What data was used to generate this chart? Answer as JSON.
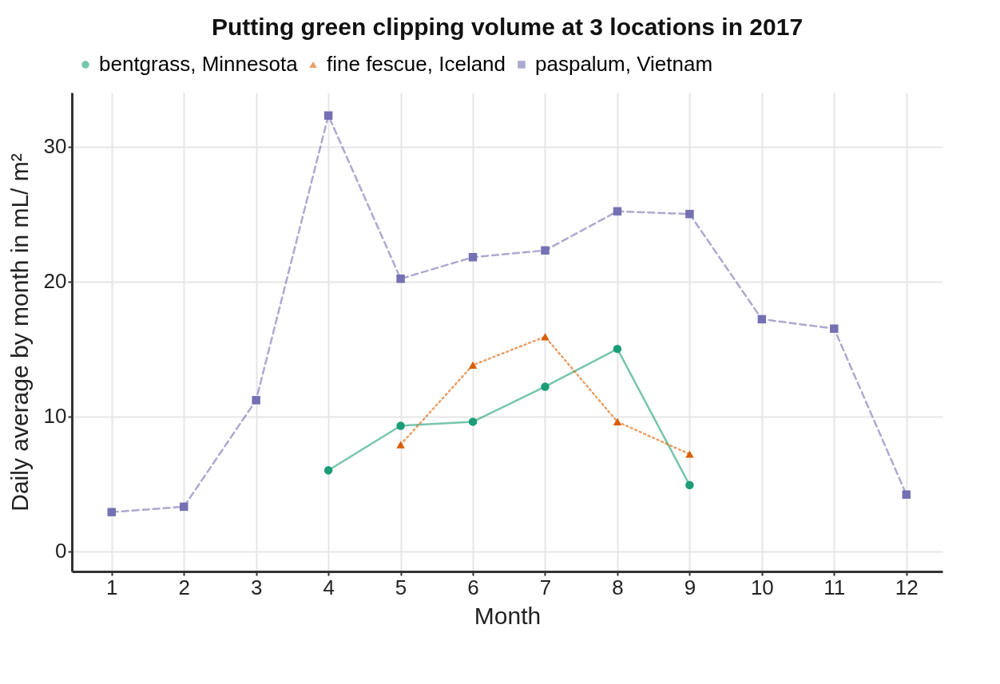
{
  "chart_data": {
    "type": "line",
    "title": "Putting green clipping volume at 3 locations in 2017",
    "xlabel": "Month",
    "ylabel": "Daily average by month in mL/ m²",
    "x": [
      1,
      2,
      3,
      4,
      5,
      6,
      7,
      8,
      9,
      10,
      11,
      12
    ],
    "xlim": [
      0.45,
      12.5
    ],
    "xticks": [
      1,
      2,
      3,
      4,
      5,
      6,
      7,
      8,
      9,
      10,
      11,
      12
    ],
    "ylim": [
      -1.5,
      34
    ],
    "yticks": [
      0,
      10,
      20,
      30
    ],
    "grid": true,
    "legend": "top",
    "series": [
      {
        "name": "bentgrass, Minnesota",
        "color": "#1b9e77",
        "marker": "circle",
        "line_style": "solid",
        "values": [
          null,
          null,
          null,
          6.0,
          9.3,
          9.6,
          12.2,
          15.0,
          4.9,
          null,
          null,
          null
        ]
      },
      {
        "name": "fine fescue, Iceland",
        "color": "#d95f02",
        "marker": "triangle",
        "line_style": "dotted",
        "values": [
          null,
          null,
          null,
          null,
          7.9,
          13.8,
          15.9,
          9.6,
          7.2,
          null,
          null,
          null
        ]
      },
      {
        "name": "paspalum, Vietnam",
        "color": "#7570b3",
        "marker": "square",
        "line_style": "dashed",
        "values": [
          2.9,
          3.3,
          11.2,
          32.3,
          20.2,
          21.8,
          22.3,
          25.2,
          25.0,
          17.2,
          16.5,
          4.2
        ]
      }
    ]
  }
}
